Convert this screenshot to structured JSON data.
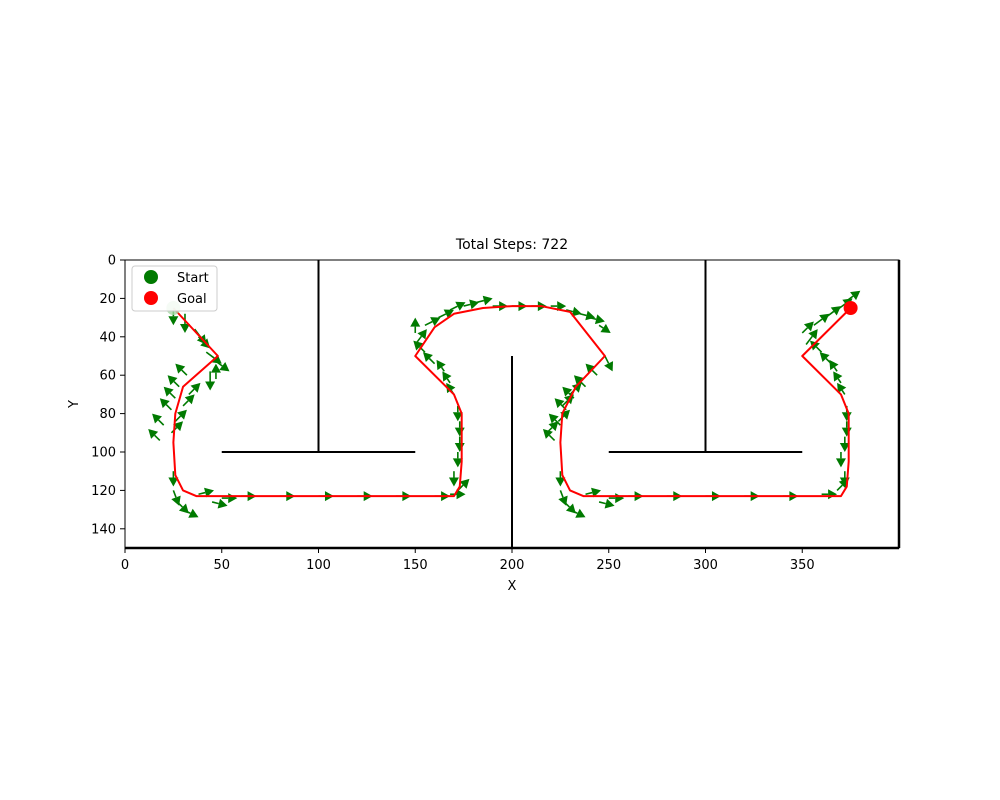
{
  "chart_data": {
    "type": "scatter",
    "title": "Total Steps: 722",
    "xlabel": "X",
    "ylabel": "Y",
    "xlim": [
      0,
      400
    ],
    "ylim": [
      150,
      0
    ],
    "y_inverted": true,
    "grid": false,
    "x_ticks": [
      0,
      50,
      100,
      150,
      200,
      250,
      300,
      350
    ],
    "y_ticks": [
      0,
      20,
      40,
      60,
      80,
      100,
      120,
      140
    ],
    "legend": {
      "placement": "top-left",
      "entries": [
        {
          "label": "Start",
          "color": "#007a00",
          "marker": "circle"
        },
        {
          "label": "Goal",
          "color": "#ff0000",
          "marker": "circle"
        }
      ]
    },
    "start": {
      "x": 25,
      "y": 25
    },
    "goal": {
      "x": 375,
      "y": 25
    },
    "walls": [
      {
        "x": [
          100,
          100
        ],
        "y": [
          0,
          100
        ]
      },
      {
        "x": [
          50,
          150
        ],
        "y": [
          100,
          100
        ]
      },
      {
        "x": [
          200,
          200
        ],
        "y": [
          50,
          150
        ]
      },
      {
        "x": [
          300,
          300
        ],
        "y": [
          0,
          100
        ]
      },
      {
        "x": [
          250,
          350
        ],
        "y": [
          100,
          100
        ]
      }
    ],
    "path": {
      "color": "#ff0000",
      "x": [
        25,
        48,
        30,
        26,
        25,
        26,
        30,
        37,
        170,
        173,
        174,
        174,
        170,
        150,
        160,
        170,
        185,
        200,
        215,
        230,
        248,
        233,
        226,
        225,
        226,
        230,
        237,
        370,
        373,
        374,
        374,
        370,
        350,
        375
      ],
      "y": [
        25,
        50,
        66,
        80,
        95,
        112,
        120,
        123,
        123,
        118,
        105,
        80,
        70,
        50,
        35,
        28,
        25,
        24,
        24,
        27,
        50,
        66,
        80,
        95,
        112,
        120,
        123,
        123,
        118,
        105,
        80,
        70,
        50,
        25
      ]
    },
    "arrows": {
      "color": "#007a00",
      "x": [
        25,
        31,
        42,
        38,
        46,
        44,
        47,
        36,
        32,
        28,
        26,
        24,
        20,
        18,
        24,
        26,
        30,
        33,
        25,
        25,
        27,
        30,
        38,
        45,
        50,
        60,
        80,
        100,
        120,
        140,
        160,
        168,
        172,
        170,
        172,
        173,
        173,
        172,
        170,
        168,
        165,
        160,
        155,
        150,
        150,
        155,
        162,
        168,
        175,
        182,
        190,
        200,
        210,
        220,
        228,
        235,
        240,
        245,
        248,
        244,
        238,
        232,
        228,
        225,
        222,
        218,
        224,
        226,
        230,
        225,
        225,
        227,
        230,
        238,
        245,
        250,
        260,
        280,
        300,
        320,
        340,
        360,
        368,
        372,
        370,
        372,
        373,
        373,
        372,
        370,
        368,
        365,
        360,
        352,
        350,
        356,
        362,
        368,
        372
      ],
      "y": [
        26,
        28,
        48,
        40,
        52,
        58,
        62,
        36,
        60,
        66,
        72,
        78,
        86,
        94,
        90,
        84,
        76,
        70,
        110,
        120,
        126,
        130,
        122,
        126,
        124,
        123,
        123,
        123,
        123,
        123,
        123,
        122,
        120,
        110,
        100,
        92,
        84,
        76,
        70,
        64,
        58,
        54,
        48,
        44,
        38,
        34,
        30,
        26,
        24,
        22,
        24,
        24,
        24,
        24,
        26,
        28,
        30,
        34,
        50,
        60,
        66,
        72,
        78,
        86,
        94,
        90,
        84,
        76,
        70,
        110,
        120,
        126,
        130,
        122,
        126,
        124,
        123,
        123,
        123,
        123,
        123,
        122,
        120,
        110,
        100,
        92,
        84,
        76,
        70,
        64,
        58,
        54,
        48,
        44,
        38,
        34,
        30,
        26,
        22
      ],
      "u": [
        0,
        0,
        8,
        6,
        8,
        0,
        0,
        6,
        -6,
        -6,
        -6,
        -6,
        -6,
        -6,
        6,
        6,
        6,
        6,
        0,
        3,
        6,
        8,
        8,
        8,
        8,
        8,
        8,
        8,
        8,
        8,
        8,
        8,
        6,
        0,
        0,
        0,
        0,
        0,
        -4,
        -4,
        -4,
        -6,
        -6,
        6,
        0,
        8,
        8,
        8,
        8,
        8,
        8,
        8,
        8,
        8,
        8,
        8,
        8,
        6,
        4,
        -6,
        -6,
        -6,
        -6,
        -6,
        -6,
        6,
        6,
        6,
        6,
        0,
        3,
        6,
        8,
        8,
        8,
        8,
        8,
        8,
        8,
        8,
        8,
        8,
        6,
        0,
        0,
        0,
        0,
        0,
        -4,
        -4,
        -4,
        -6,
        -6,
        6,
        6,
        8,
        8,
        8,
        8
      ],
      "v": [
        8,
        10,
        6,
        6,
        6,
        10,
        -8,
        8,
        -6,
        -6,
        -6,
        -6,
        -6,
        -6,
        -6,
        -6,
        -6,
        -6,
        8,
        8,
        6,
        4,
        -2,
        2,
        0,
        0,
        0,
        0,
        0,
        0,
        0,
        0,
        -6,
        8,
        8,
        8,
        8,
        8,
        -6,
        -6,
        -6,
        -6,
        -6,
        -8,
        -8,
        -4,
        -4,
        -4,
        -2,
        -2,
        0,
        0,
        0,
        0,
        2,
        2,
        2,
        4,
        8,
        -6,
        -6,
        -6,
        -6,
        -6,
        -6,
        -6,
        -6,
        -6,
        -6,
        8,
        8,
        6,
        4,
        -2,
        2,
        0,
        0,
        0,
        0,
        0,
        0,
        0,
        -6,
        8,
        8,
        8,
        8,
        8,
        -6,
        -6,
        -6,
        -6,
        -6,
        -8,
        -6,
        -6,
        -6,
        -6,
        -6
      ]
    }
  }
}
